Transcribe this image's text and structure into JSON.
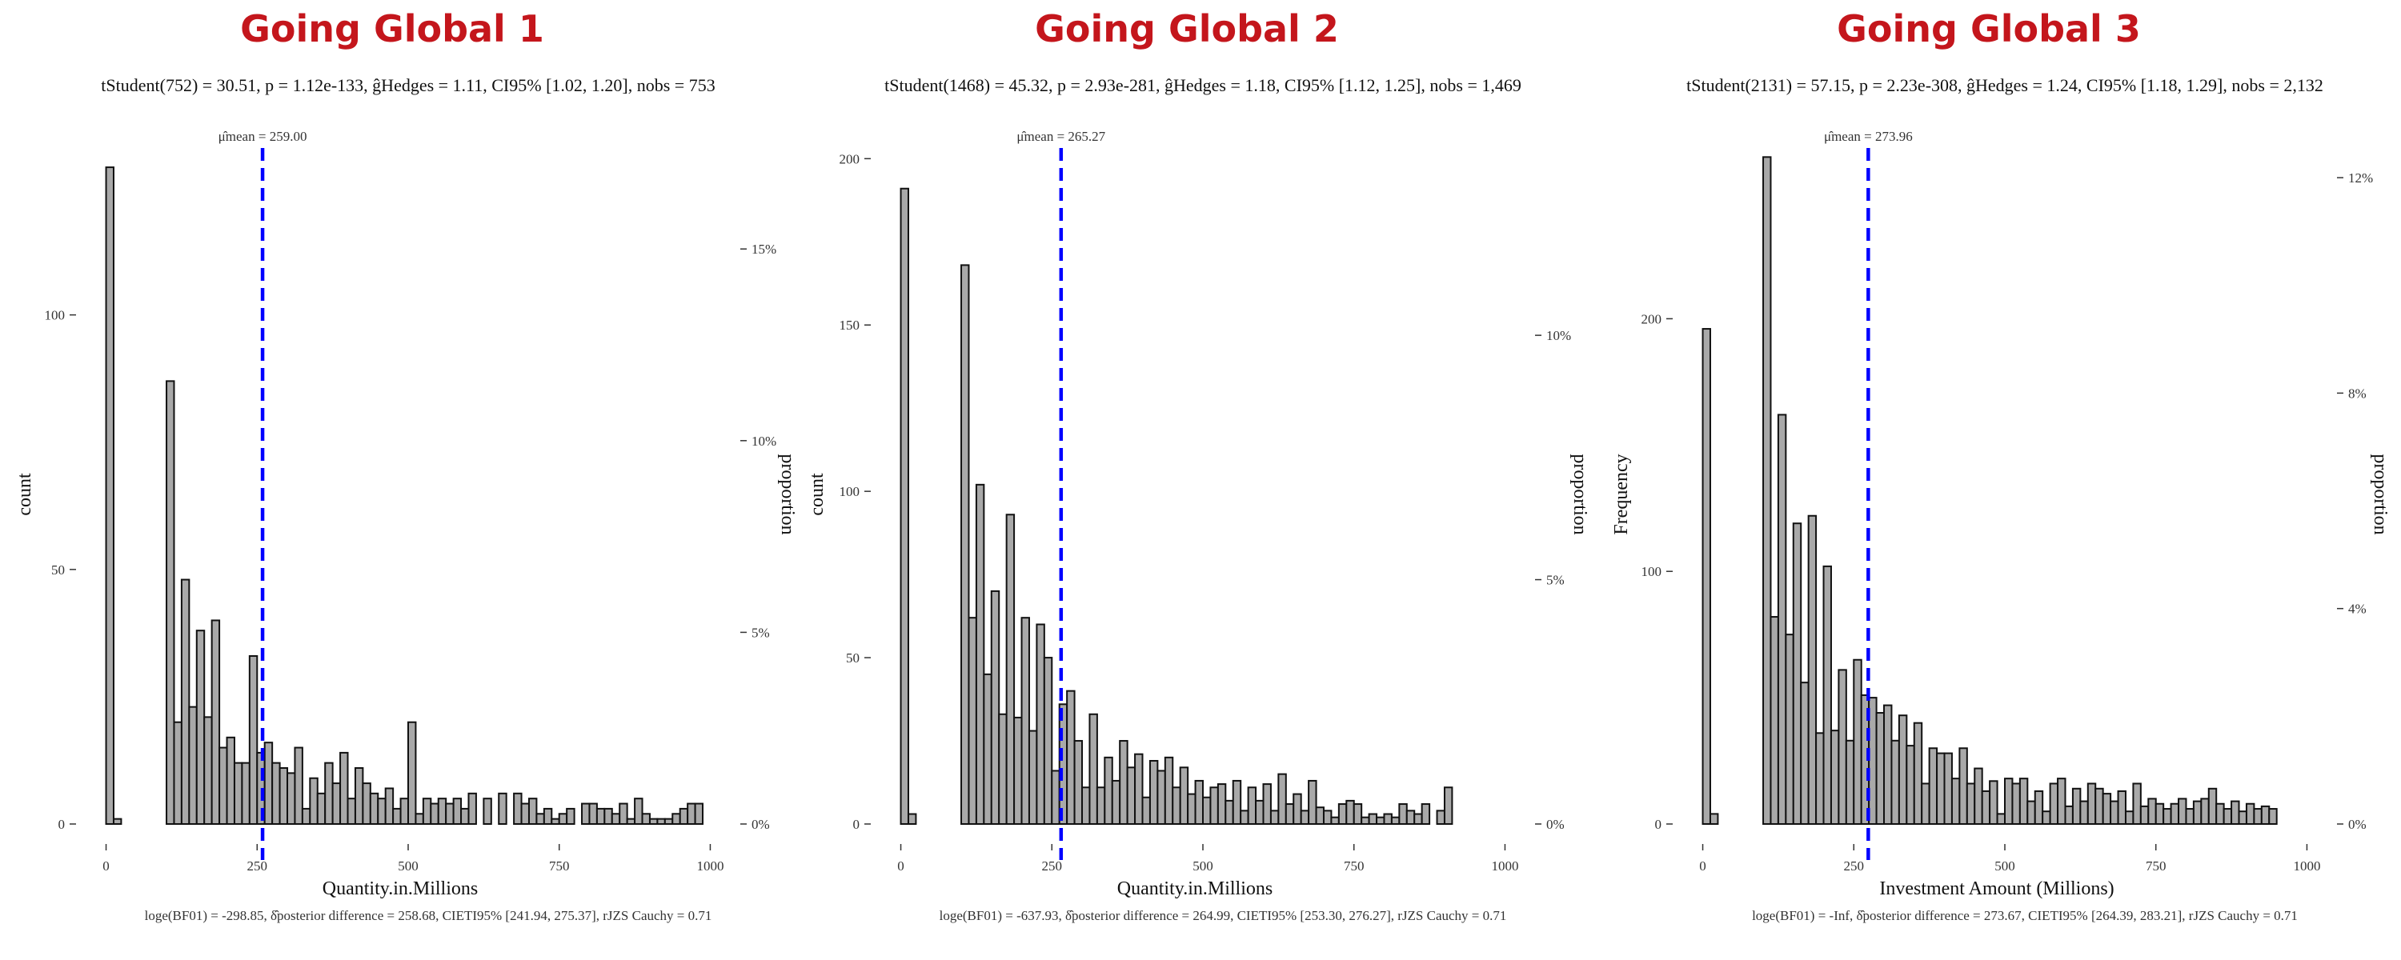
{
  "colors": {
    "title": "#c4161c",
    "bar_fill": "#a9a9a9",
    "bar_stroke": "#111111",
    "mean_line": "#0000ff"
  },
  "chart_data": [
    {
      "type": "bar",
      "title": "Going Global 1",
      "subtitle": "tStudent(752) = 30.51, p = 1.12e-133, ĝHedges = 1.11, CI95% [1.02, 1.20], nobs = 753",
      "caption": "loge(BF01) = -298.85, δ̂posterior difference = 258.68, CIETI95% [241.94, 275.37], rJZS Cauchy = 0.71",
      "mean_label": "μ̂mean = 259.00",
      "mean": 259.0,
      "xlabel": "Quantity.in.Millions",
      "ylabel": "count",
      "y2label": "proportion",
      "xlim": [
        -10,
        1010
      ],
      "ylim": [
        0,
        132
      ],
      "xticks": [
        0,
        250,
        500,
        750,
        1000
      ],
      "xtick_labels": [
        "0",
        "250",
        "500",
        "750",
        "1000"
      ],
      "yticks": [
        0,
        50,
        100
      ],
      "ytick_labels": [
        "0",
        "50",
        "100"
      ],
      "y2ticks": [
        0,
        37.65,
        75.3,
        112.95
      ],
      "y2tick_labels": [
        "0%",
        "5%",
        "10%",
        "15%"
      ],
      "bin_width": 12.5,
      "bins": [
        0,
        12.5,
        100,
        112.5,
        125,
        137.5,
        150,
        162.5,
        175,
        187.5,
        200,
        212.5,
        225,
        237.5,
        250,
        262.5,
        275,
        287.5,
        300,
        312.5,
        325,
        337.5,
        350,
        362.5,
        375,
        387.5,
        400,
        412.5,
        425,
        437.5,
        450,
        462.5,
        475,
        487.5,
        500,
        512.5,
        525,
        537.5,
        550,
        562.5,
        575,
        587.5,
        600,
        612.5,
        625,
        637.5,
        650,
        662.5,
        675,
        687.5,
        700,
        712.5,
        725,
        737.5,
        750,
        762.5,
        775,
        787.5,
        800,
        812.5,
        825,
        837.5,
        850,
        862.5,
        875,
        887.5,
        900,
        912.5,
        925,
        937.5,
        950,
        962.5,
        975,
        987.5
      ],
      "counts": [
        129,
        1,
        87,
        20,
        48,
        23,
        38,
        21,
        40,
        15,
        17,
        12,
        12,
        33,
        14,
        16,
        12,
        11,
        10,
        15,
        3,
        9,
        6,
        12,
        8,
        14,
        5,
        11,
        8,
        6,
        5,
        7,
        3,
        5,
        20,
        2,
        5,
        4,
        5,
        4,
        5,
        3,
        6,
        0,
        5,
        0,
        6,
        0,
        6,
        4,
        5,
        2,
        3,
        1,
        2,
        3,
        0,
        4,
        4,
        3,
        3,
        2,
        4,
        1,
        5,
        2,
        1,
        1,
        1,
        2,
        3,
        4,
        4,
        0
      ]
    },
    {
      "type": "bar",
      "title": "Going Global 2",
      "subtitle": "tStudent(1468) = 45.32, p = 2.93e-281, ĝHedges = 1.18, CI95% [1.12, 1.25], nobs = 1,469",
      "caption": "loge(BF01) = -637.93, δ̂posterior difference = 264.99, CIETI95% [253.30, 276.27], rJZS Cauchy = 0.71",
      "mean_label": "μ̂mean = 265.27",
      "mean": 265.27,
      "xlabel": "Quantity.in.Millions",
      "ylabel": "count",
      "y2label": "proportion",
      "xlim": [
        -10,
        1010
      ],
      "ylim": [
        0,
        202
      ],
      "xticks": [
        0,
        250,
        500,
        750,
        1000
      ],
      "xtick_labels": [
        "0",
        "250",
        "500",
        "750",
        "1000"
      ],
      "yticks": [
        0,
        50,
        100,
        150,
        200
      ],
      "ytick_labels": [
        "0",
        "50",
        "100",
        "150",
        "200"
      ],
      "y2ticks": [
        0,
        73.45,
        146.9
      ],
      "y2tick_labels": [
        "0%",
        "5%",
        "10%"
      ],
      "bin_width": 12.5,
      "bins": [
        0,
        12.5,
        100,
        112.5,
        125,
        137.5,
        150,
        162.5,
        175,
        187.5,
        200,
        212.5,
        225,
        237.5,
        250,
        262.5,
        275,
        287.5,
        300,
        312.5,
        325,
        337.5,
        350,
        362.5,
        375,
        387.5,
        400,
        412.5,
        425,
        437.5,
        450,
        462.5,
        475,
        487.5,
        500,
        512.5,
        525,
        537.5,
        550,
        562.5,
        575,
        587.5,
        600,
        612.5,
        625,
        637.5,
        650,
        662.5,
        675,
        687.5,
        700,
        712.5,
        725,
        737.5,
        750,
        762.5,
        775,
        787.5,
        800,
        812.5,
        825,
        837.5,
        850,
        862.5,
        875,
        887.5,
        900,
        912.5,
        925,
        937.5,
        950,
        962.5,
        975,
        987.5
      ],
      "counts": [
        191,
        3,
        168,
        62,
        102,
        45,
        70,
        33,
        93,
        32,
        62,
        28,
        60,
        50,
        16,
        36,
        40,
        25,
        11,
        33,
        11,
        20,
        13,
        25,
        17,
        21,
        8,
        19,
        16,
        20,
        11,
        17,
        9,
        13,
        8,
        11,
        12,
        7,
        13,
        4,
        11,
        7,
        12,
        4,
        15,
        6,
        9,
        4,
        13,
        5,
        4,
        2,
        6,
        7,
        6,
        2,
        3,
        2,
        3,
        2,
        6,
        4,
        3,
        6,
        0,
        4,
        11,
        0,
        0,
        0,
        0,
        0,
        0,
        0
      ]
    },
    {
      "type": "bar",
      "title": "Going Global 3",
      "subtitle": "tStudent(2131) = 57.15, p = 2.23e-308, ĝHedges = 1.24, CI95% [1.18, 1.29], nobs = 2,132",
      "caption": "loge(BF01) = -Inf, δ̂posterior difference = 273.67, CIETI95% [264.39, 283.21], rJZS Cauchy = 0.71",
      "mean_label": "μ̂mean = 273.96",
      "mean": 273.96,
      "xlabel": "Investment Amount (Millions)",
      "ylabel": "Frequency",
      "y2label": "proportion",
      "xlim": [
        -10,
        1010
      ],
      "ylim": [
        0,
        266
      ],
      "xticks": [
        0,
        250,
        500,
        750,
        1000
      ],
      "xtick_labels": [
        "0",
        "250",
        "500",
        "750",
        "1000"
      ],
      "yticks": [
        0,
        100,
        200
      ],
      "ytick_labels": [
        "0",
        "100",
        "200"
      ],
      "y2ticks": [
        0,
        85.28,
        170.56,
        255.84
      ],
      "y2tick_labels": [
        "0%",
        "4%",
        "8%",
        "12%"
      ],
      "bin_width": 12.5,
      "bins": [
        0,
        12.5,
        100,
        112.5,
        125,
        137.5,
        150,
        162.5,
        175,
        187.5,
        200,
        212.5,
        225,
        237.5,
        250,
        262.5,
        275,
        287.5,
        300,
        312.5,
        325,
        337.5,
        350,
        362.5,
        375,
        387.5,
        400,
        412.5,
        425,
        437.5,
        450,
        462.5,
        475,
        487.5,
        500,
        512.5,
        525,
        537.5,
        550,
        562.5,
        575,
        587.5,
        600,
        612.5,
        625,
        637.5,
        650,
        662.5,
        675,
        687.5,
        700,
        712.5,
        725,
        737.5,
        750,
        762.5,
        775,
        787.5,
        800,
        812.5,
        825,
        837.5,
        850,
        862.5,
        875,
        887.5,
        900,
        912.5,
        925,
        937.5,
        950,
        962.5,
        975,
        987.5
      ],
      "counts": [
        196,
        4,
        264,
        82,
        162,
        75,
        119,
        56,
        122,
        36,
        102,
        37,
        61,
        33,
        65,
        51,
        50,
        44,
        47,
        33,
        43,
        31,
        40,
        16,
        30,
        28,
        28,
        18,
        30,
        16,
        22,
        13,
        17,
        4,
        18,
        16,
        18,
        9,
        13,
        5,
        16,
        18,
        7,
        14,
        9,
        16,
        14,
        12,
        9,
        13,
        5,
        16,
        7,
        10,
        8,
        6,
        8,
        10,
        6,
        9,
        10,
        14,
        8,
        6,
        9,
        5,
        8,
        6,
        7,
        6,
        0,
        0,
        0,
        0
      ]
    }
  ]
}
